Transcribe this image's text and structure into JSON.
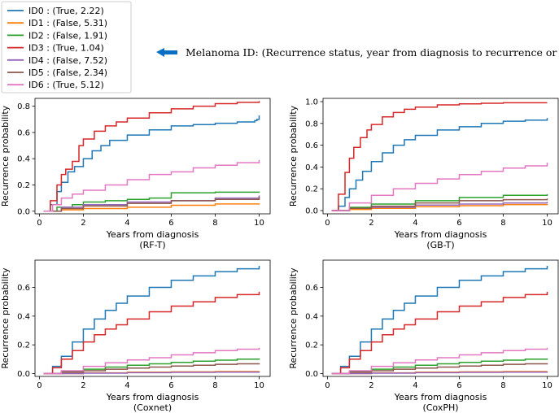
{
  "legend": {
    "entries": [
      {
        "label": "ID0 : (True, 2.22)",
        "color": "#1f77b4"
      },
      {
        "label": "ID1 : (False, 5.31)",
        "color": "#ff7f0e"
      },
      {
        "label": "ID2 : (False, 1.91)",
        "color": "#2ca02c"
      },
      {
        "label": "ID3 : (True, 1.04)",
        "color": "#d62728"
      },
      {
        "label": "ID4 : (False, 7.52)",
        "color": "#9467bd"
      },
      {
        "label": "ID5 : (False, 2.34)",
        "color": "#8c564b"
      },
      {
        "label": "ID6 : (True, 5.12)",
        "color": "#e377c2"
      }
    ]
  },
  "annotation": {
    "text": "Melanoma ID: (Recurrence status, year from diagnosis to recurrence or last follow-up)",
    "arrow_color": "#0a6fc2"
  },
  "chart_data": [
    {
      "type": "line",
      "subtitle": "(RF-T)",
      "xlabel": "Years from diagnosis",
      "ylabel": "Recurrence probability",
      "xlim": [
        -0.2,
        10.5
      ],
      "ylim": [
        -0.02,
        0.86
      ],
      "xticks": [
        0,
        2,
        4,
        6,
        8,
        10
      ],
      "yticks": [
        0.0,
        0.2,
        0.4,
        0.6,
        0.8
      ],
      "series": [
        {
          "color": "#1f77b4",
          "x": [
            0.2,
            0.5,
            0.8,
            1.0,
            1.3,
            1.6,
            2.0,
            2.4,
            2.8,
            3.2,
            4.0,
            5.0,
            6.0,
            7.0,
            8.0,
            9.0,
            9.8,
            9.9,
            10.0
          ],
          "y": [
            0.0,
            0.05,
            0.15,
            0.22,
            0.3,
            0.34,
            0.4,
            0.46,
            0.5,
            0.54,
            0.58,
            0.62,
            0.65,
            0.66,
            0.67,
            0.68,
            0.69,
            0.7,
            0.73
          ]
        },
        {
          "color": "#ff7f0e",
          "x": [
            0.2,
            1.0,
            2.0,
            4.0,
            6.0,
            8.0,
            10.0
          ],
          "y": [
            0.0,
            0.01,
            0.02,
            0.03,
            0.045,
            0.055,
            0.06
          ]
        },
        {
          "color": "#2ca02c",
          "x": [
            0.2,
            0.8,
            1.5,
            2.0,
            3.0,
            4.0,
            5.0,
            6.0,
            8.0,
            10.0
          ],
          "y": [
            0.0,
            0.03,
            0.05,
            0.07,
            0.08,
            0.09,
            0.1,
            0.14,
            0.145,
            0.15
          ]
        },
        {
          "color": "#d62728",
          "x": [
            0.2,
            0.5,
            0.8,
            1.0,
            1.2,
            1.5,
            1.8,
            2.0,
            2.5,
            3.0,
            3.5,
            4.0,
            5.0,
            6.0,
            7.0,
            8.0,
            9.0,
            10.0
          ],
          "y": [
            0.0,
            0.08,
            0.2,
            0.28,
            0.32,
            0.38,
            0.5,
            0.55,
            0.61,
            0.65,
            0.68,
            0.71,
            0.75,
            0.78,
            0.8,
            0.82,
            0.83,
            0.84
          ]
        },
        {
          "color": "#9467bd",
          "x": [
            0.2,
            1.0,
            2.0,
            4.0,
            6.0,
            8.0,
            10.0
          ],
          "y": [
            0.0,
            0.03,
            0.05,
            0.07,
            0.08,
            0.1,
            0.12
          ]
        },
        {
          "color": "#8c564b",
          "x": [
            0.2,
            1.0,
            2.0,
            4.0,
            6.0,
            8.0,
            10.0
          ],
          "y": [
            0.0,
            0.02,
            0.04,
            0.06,
            0.08,
            0.09,
            0.11
          ]
        },
        {
          "color": "#e377c2",
          "x": [
            0.2,
            0.6,
            1.0,
            1.5,
            2.0,
            3.0,
            4.0,
            5.0,
            6.0,
            7.0,
            8.0,
            9.0,
            10.0
          ],
          "y": [
            0.0,
            0.05,
            0.1,
            0.13,
            0.16,
            0.2,
            0.24,
            0.28,
            0.3,
            0.33,
            0.35,
            0.37,
            0.39
          ]
        }
      ]
    },
    {
      "type": "line",
      "subtitle": "(GB-T)",
      "xlabel": "Years from diagnosis",
      "ylabel": "Recurrence probability",
      "xlim": [
        -0.2,
        10.5
      ],
      "ylim": [
        -0.03,
        1.03
      ],
      "xticks": [
        0,
        2,
        4,
        6,
        8,
        10
      ],
      "yticks": [
        0.0,
        0.2,
        0.4,
        0.6,
        0.8,
        1.0
      ],
      "series": [
        {
          "color": "#1f77b4",
          "x": [
            0.2,
            0.5,
            0.8,
            1.0,
            1.3,
            1.6,
            2.0,
            2.5,
            3.0,
            3.5,
            4.0,
            5.0,
            6.0,
            7.0,
            8.0,
            9.0,
            10.0
          ],
          "y": [
            0.0,
            0.04,
            0.12,
            0.2,
            0.28,
            0.36,
            0.45,
            0.53,
            0.6,
            0.65,
            0.69,
            0.74,
            0.77,
            0.8,
            0.82,
            0.83,
            0.85
          ]
        },
        {
          "color": "#ff7f0e",
          "x": [
            0.2,
            1.0,
            2.0,
            4.0,
            6.0,
            8.0,
            10.0
          ],
          "y": [
            0.0,
            0.01,
            0.02,
            0.035,
            0.045,
            0.055,
            0.06
          ]
        },
        {
          "color": "#2ca02c",
          "x": [
            0.2,
            1.0,
            2.0,
            4.0,
            6.0,
            8.0,
            10.0
          ],
          "y": [
            0.0,
            0.03,
            0.06,
            0.09,
            0.12,
            0.14,
            0.15
          ]
        },
        {
          "color": "#d62728",
          "x": [
            0.2,
            0.5,
            0.8,
            1.0,
            1.2,
            1.5,
            1.8,
            2.0,
            2.5,
            3.0,
            3.5,
            4.0,
            5.0,
            6.0,
            7.0,
            8.0,
            9.0,
            10.0
          ],
          "y": [
            0.0,
            0.15,
            0.35,
            0.48,
            0.58,
            0.67,
            0.74,
            0.79,
            0.86,
            0.9,
            0.93,
            0.95,
            0.97,
            0.98,
            0.985,
            0.99,
            0.99,
            0.99
          ]
        },
        {
          "color": "#9467bd",
          "x": [
            0.2,
            1.0,
            2.0,
            4.0,
            6.0,
            8.0,
            10.0
          ],
          "y": [
            0.0,
            0.02,
            0.03,
            0.05,
            0.06,
            0.07,
            0.08
          ]
        },
        {
          "color": "#8c564b",
          "x": [
            0.2,
            1.0,
            2.0,
            4.0,
            6.0,
            8.0,
            10.0
          ],
          "y": [
            0.0,
            0.02,
            0.04,
            0.07,
            0.09,
            0.1,
            0.11
          ]
        },
        {
          "color": "#e377c2",
          "x": [
            0.2,
            1.0,
            2.0,
            3.0,
            4.0,
            5.0,
            6.0,
            7.0,
            8.0,
            9.0,
            10.0
          ],
          "y": [
            0.0,
            0.07,
            0.14,
            0.2,
            0.25,
            0.29,
            0.33,
            0.36,
            0.39,
            0.41,
            0.44
          ]
        }
      ]
    },
    {
      "type": "line",
      "subtitle": "(Coxnet)",
      "xlabel": "Years from diagnosis",
      "ylabel": "Recurrence probability",
      "xlim": [
        -0.2,
        10.5
      ],
      "ylim": [
        -0.02,
        0.79
      ],
      "xticks": [
        0,
        2,
        4,
        6,
        8,
        10
      ],
      "yticks": [
        0.0,
        0.2,
        0.4,
        0.6
      ],
      "series": [
        {
          "color": "#1f77b4",
          "x": [
            0.2,
            0.6,
            1.0,
            1.5,
            2.0,
            2.5,
            3.0,
            3.5,
            4.0,
            5.0,
            6.0,
            7.0,
            8.0,
            9.0,
            10.0
          ],
          "y": [
            0.0,
            0.05,
            0.12,
            0.22,
            0.31,
            0.38,
            0.44,
            0.49,
            0.54,
            0.6,
            0.65,
            0.68,
            0.71,
            0.73,
            0.75
          ]
        },
        {
          "color": "#ff7f0e",
          "x": [
            0.2,
            2.0,
            4.0,
            6.0,
            8.0,
            10.0
          ],
          "y": [
            0.0,
            0.005,
            0.01,
            0.012,
            0.014,
            0.016
          ]
        },
        {
          "color": "#2ca02c",
          "x": [
            0.2,
            1.0,
            2.0,
            3.0,
            4.0,
            5.0,
            6.0,
            7.0,
            8.0,
            9.0,
            10.0
          ],
          "y": [
            0.0,
            0.015,
            0.03,
            0.045,
            0.058,
            0.068,
            0.078,
            0.086,
            0.093,
            0.1,
            0.105
          ]
        },
        {
          "color": "#d62728",
          "x": [
            0.2,
            0.6,
            1.0,
            1.5,
            2.0,
            2.5,
            3.0,
            3.5,
            4.0,
            5.0,
            6.0,
            7.0,
            8.0,
            9.0,
            10.0
          ],
          "y": [
            0.0,
            0.04,
            0.1,
            0.16,
            0.22,
            0.27,
            0.31,
            0.34,
            0.38,
            0.43,
            0.47,
            0.5,
            0.53,
            0.55,
            0.57
          ]
        },
        {
          "color": "#9467bd",
          "x": [
            0.2,
            2.0,
            4.0,
            6.0,
            8.0,
            10.0
          ],
          "y": [
            0.0,
            0.003,
            0.006,
            0.008,
            0.01,
            0.012
          ]
        },
        {
          "color": "#8c564b",
          "x": [
            0.2,
            1.0,
            2.0,
            3.0,
            4.0,
            5.0,
            6.0,
            7.0,
            8.0,
            9.0,
            10.0
          ],
          "y": [
            0.0,
            0.01,
            0.02,
            0.03,
            0.038,
            0.045,
            0.052,
            0.058,
            0.064,
            0.068,
            0.072
          ]
        },
        {
          "color": "#e377c2",
          "x": [
            0.2,
            1.0,
            2.0,
            3.0,
            4.0,
            5.0,
            6.0,
            7.0,
            8.0,
            9.0,
            10.0
          ],
          "y": [
            0.0,
            0.02,
            0.05,
            0.075,
            0.095,
            0.11,
            0.13,
            0.145,
            0.16,
            0.17,
            0.18
          ]
        }
      ]
    },
    {
      "type": "line",
      "subtitle": "(CoxPH)",
      "xlabel": "Years from diagnosis",
      "ylabel": "Recurrence probability",
      "xlim": [
        -0.2,
        10.5
      ],
      "ylim": [
        -0.02,
        0.79
      ],
      "xticks": [
        0,
        2,
        4,
        6,
        8,
        10
      ],
      "yticks": [
        0.0,
        0.2,
        0.4,
        0.6
      ],
      "series": [
        {
          "color": "#1f77b4",
          "x": [
            0.2,
            0.6,
            1.0,
            1.5,
            2.0,
            2.5,
            3.0,
            3.5,
            4.0,
            5.0,
            6.0,
            7.0,
            8.0,
            9.0,
            10.0
          ],
          "y": [
            0.0,
            0.05,
            0.12,
            0.22,
            0.31,
            0.38,
            0.44,
            0.49,
            0.54,
            0.6,
            0.65,
            0.68,
            0.71,
            0.73,
            0.75
          ]
        },
        {
          "color": "#ff7f0e",
          "x": [
            0.2,
            2.0,
            4.0,
            6.0,
            8.0,
            10.0
          ],
          "y": [
            0.0,
            0.005,
            0.01,
            0.012,
            0.014,
            0.016
          ]
        },
        {
          "color": "#2ca02c",
          "x": [
            0.2,
            1.0,
            2.0,
            3.0,
            4.0,
            5.0,
            6.0,
            7.0,
            8.0,
            9.0,
            10.0
          ],
          "y": [
            0.0,
            0.015,
            0.03,
            0.045,
            0.058,
            0.068,
            0.078,
            0.086,
            0.093,
            0.1,
            0.105
          ]
        },
        {
          "color": "#d62728",
          "x": [
            0.2,
            0.6,
            1.0,
            1.5,
            2.0,
            2.5,
            3.0,
            3.5,
            4.0,
            5.0,
            6.0,
            7.0,
            8.0,
            9.0,
            10.0
          ],
          "y": [
            0.0,
            0.04,
            0.1,
            0.16,
            0.22,
            0.27,
            0.31,
            0.34,
            0.38,
            0.43,
            0.47,
            0.5,
            0.53,
            0.55,
            0.57
          ]
        },
        {
          "color": "#9467bd",
          "x": [
            0.2,
            2.0,
            4.0,
            6.0,
            8.0,
            10.0
          ],
          "y": [
            0.0,
            0.003,
            0.006,
            0.008,
            0.01,
            0.012
          ]
        },
        {
          "color": "#8c564b",
          "x": [
            0.2,
            1.0,
            2.0,
            3.0,
            4.0,
            5.0,
            6.0,
            7.0,
            8.0,
            9.0,
            10.0
          ],
          "y": [
            0.0,
            0.01,
            0.02,
            0.03,
            0.038,
            0.045,
            0.052,
            0.058,
            0.064,
            0.068,
            0.072
          ]
        },
        {
          "color": "#e377c2",
          "x": [
            0.2,
            1.0,
            2.0,
            3.0,
            4.0,
            5.0,
            6.0,
            7.0,
            8.0,
            9.0,
            10.0
          ],
          "y": [
            0.0,
            0.02,
            0.05,
            0.075,
            0.095,
            0.11,
            0.13,
            0.145,
            0.16,
            0.17,
            0.18
          ]
        }
      ]
    }
  ]
}
